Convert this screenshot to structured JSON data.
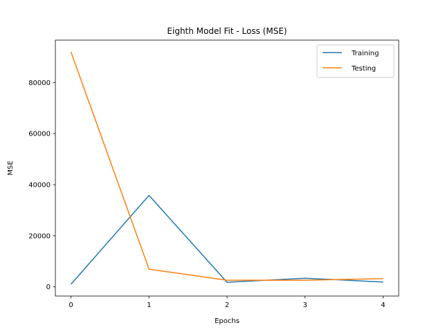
{
  "chart_data": {
    "type": "line",
    "title": "Eighth Model Fit - Loss (MSE)",
    "xlabel": "Epochs",
    "ylabel": "MSE",
    "x": [
      0,
      1,
      2,
      3,
      4
    ],
    "xlim": [
      -0.2,
      4.2
    ],
    "ylim": [
      -3600,
      96600
    ],
    "xticks": [
      0,
      1,
      2,
      3,
      4
    ],
    "yticks": [
      0,
      20000,
      40000,
      60000,
      80000
    ],
    "grid": false,
    "legend_position": "top-right",
    "series": [
      {
        "name": "Training",
        "color": "#1f77b4",
        "values": [
          1000,
          35800,
          1800,
          3400,
          1900
        ]
      },
      {
        "name": "Testing",
        "color": "#ff7f0e",
        "values": [
          92000,
          6900,
          2600,
          2600,
          3200
        ]
      }
    ]
  }
}
